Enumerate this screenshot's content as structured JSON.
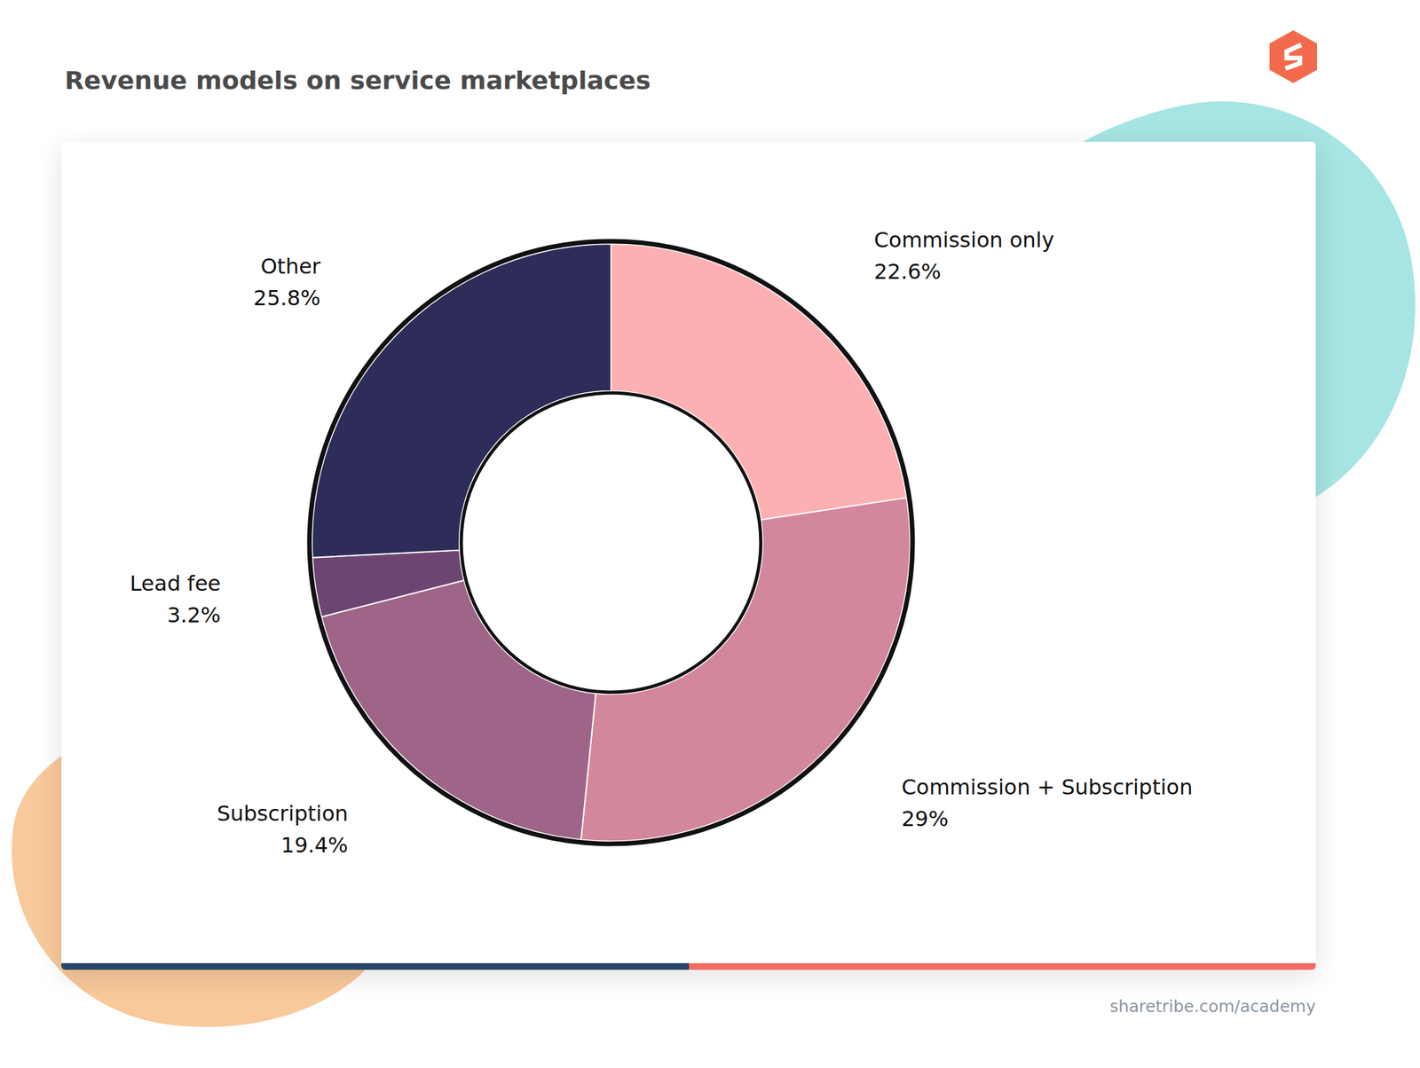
{
  "chart_data": {
    "type": "pie",
    "title": "Revenue models on service marketplaces",
    "categories": [
      "Commission only",
      "Commission + Subscription",
      "Subscription",
      "Lead fee",
      "Other"
    ],
    "values": [
      22.6,
      29,
      19.4,
      3.2,
      25.8
    ],
    "value_labels": [
      "22.6%",
      "29%",
      "19.4%",
      "3.2%",
      "25.8%"
    ],
    "colors": [
      "#fdb0b2",
      "#d3879c",
      "#9e6589",
      "#6d4572",
      "#2e2c59"
    ],
    "data_labels": true,
    "source": "sharetribe.com/academy"
  }
}
